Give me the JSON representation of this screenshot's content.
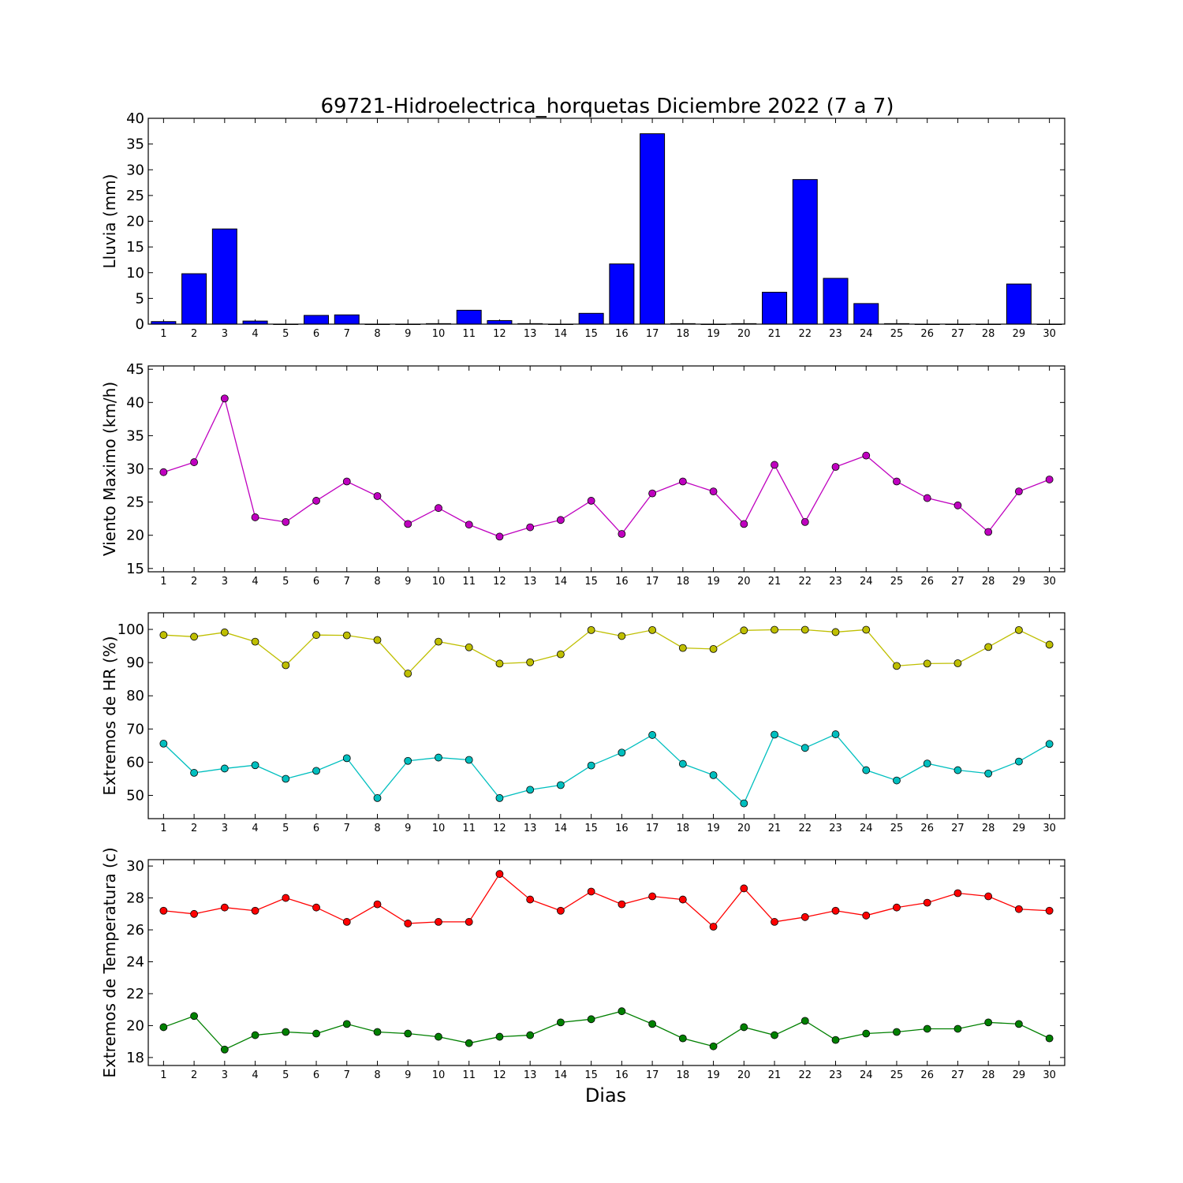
{
  "figure": {
    "title": "69721-Hidroelectrica_horquetas Diciembre 2022  (7 a 7)",
    "xlabel": "Dias"
  },
  "chart_data": [
    {
      "type": "bar",
      "id": "lluvia",
      "ylabel": "Lluvia (mm)",
      "x": [
        1,
        2,
        3,
        4,
        5,
        6,
        7,
        8,
        9,
        10,
        11,
        12,
        13,
        14,
        15,
        16,
        17,
        18,
        19,
        20,
        21,
        22,
        23,
        24,
        25,
        26,
        27,
        28,
        29,
        30
      ],
      "ylim": [
        0,
        40
      ],
      "yticks": [
        0,
        5,
        10,
        15,
        20,
        25,
        30,
        35,
        40
      ],
      "series": [
        {
          "color": "#0000ff",
          "values": [
            0.5,
            9.8,
            18.5,
            0.6,
            0,
            1.7,
            1.8,
            0,
            0,
            0.1,
            2.7,
            0.7,
            0.1,
            0,
            2.1,
            11.7,
            37.0,
            0.1,
            0,
            0.1,
            6.2,
            28.1,
            8.9,
            4.0,
            0.1,
            0,
            0,
            0,
            7.8,
            0
          ]
        }
      ]
    },
    {
      "type": "line",
      "id": "viento",
      "ylabel": "Viento Maximo (km/h)",
      "x": [
        1,
        2,
        3,
        4,
        5,
        6,
        7,
        8,
        9,
        10,
        11,
        12,
        13,
        14,
        15,
        16,
        17,
        18,
        19,
        20,
        21,
        22,
        23,
        24,
        25,
        26,
        27,
        28,
        29,
        30
      ],
      "ylim": [
        14.5,
        45.5
      ],
      "yticks": [
        15,
        20,
        25,
        30,
        35,
        40,
        45
      ],
      "series": [
        {
          "color": "#bf00bf",
          "values": [
            29.5,
            31.0,
            40.6,
            22.7,
            22.0,
            25.2,
            28.1,
            25.9,
            21.7,
            24.1,
            21.6,
            19.8,
            21.2,
            22.3,
            25.2,
            20.2,
            26.3,
            28.1,
            26.6,
            21.7,
            30.6,
            22.0,
            30.3,
            32.0,
            28.1,
            25.6,
            24.5,
            20.5,
            26.6,
            28.4
          ]
        }
      ]
    },
    {
      "type": "line",
      "id": "hr",
      "ylabel": "Extremos de HR (%)",
      "x": [
        1,
        2,
        3,
        4,
        5,
        6,
        7,
        8,
        9,
        10,
        11,
        12,
        13,
        14,
        15,
        16,
        17,
        18,
        19,
        20,
        21,
        22,
        23,
        24,
        25,
        26,
        27,
        28,
        29,
        30
      ],
      "ylim": [
        43,
        105
      ],
      "yticks": [
        50,
        60,
        70,
        80,
        90,
        100
      ],
      "series": [
        {
          "color": "#bfbf00",
          "values": [
            98.3,
            97.8,
            99.1,
            96.3,
            89.2,
            98.3,
            98.2,
            96.8,
            86.7,
            96.3,
            94.6,
            89.7,
            90.1,
            92.5,
            99.8,
            98.0,
            99.8,
            94.4,
            94.1,
            99.7,
            99.9,
            99.9,
            99.2,
            99.9,
            89.0,
            89.7,
            89.8,
            94.7,
            99.8,
            95.4
          ]
        },
        {
          "color": "#00bfbf",
          "values": [
            65.6,
            56.8,
            58.1,
            59.1,
            55.0,
            57.4,
            61.2,
            49.2,
            60.4,
            61.4,
            60.7,
            49.2,
            51.7,
            53.1,
            59.0,
            62.9,
            68.2,
            59.5,
            56.1,
            47.6,
            68.3,
            64.3,
            68.4,
            57.6,
            54.5,
            59.6,
            57.6,
            56.6,
            60.2,
            65.5
          ]
        }
      ]
    },
    {
      "type": "line",
      "id": "temperatura",
      "ylabel": "Extremos de Temperatura (c)",
      "x": [
        1,
        2,
        3,
        4,
        5,
        6,
        7,
        8,
        9,
        10,
        11,
        12,
        13,
        14,
        15,
        16,
        17,
        18,
        19,
        20,
        21,
        22,
        23,
        24,
        25,
        26,
        27,
        28,
        29,
        30
      ],
      "ylim": [
        17.5,
        30.4
      ],
      "yticks": [
        18,
        20,
        22,
        24,
        26,
        28,
        30
      ],
      "series": [
        {
          "color": "#ff0000",
          "values": [
            27.2,
            27.0,
            27.4,
            27.2,
            28.0,
            27.4,
            26.5,
            27.6,
            26.4,
            26.5,
            26.5,
            29.5,
            27.9,
            27.2,
            28.4,
            27.6,
            28.1,
            27.9,
            26.2,
            28.6,
            26.5,
            26.8,
            27.2,
            26.9,
            27.4,
            27.7,
            28.3,
            28.1,
            27.3,
            27.2
          ]
        },
        {
          "color": "#008000",
          "values": [
            19.9,
            20.6,
            18.5,
            19.4,
            19.6,
            19.5,
            20.1,
            19.6,
            19.5,
            19.3,
            18.9,
            19.3,
            19.4,
            20.2,
            20.4,
            20.9,
            20.1,
            19.2,
            18.7,
            19.9,
            19.4,
            20.3,
            19.1,
            19.5,
            19.6,
            19.8,
            19.8,
            20.2,
            20.1,
            19.2
          ]
        }
      ]
    }
  ]
}
